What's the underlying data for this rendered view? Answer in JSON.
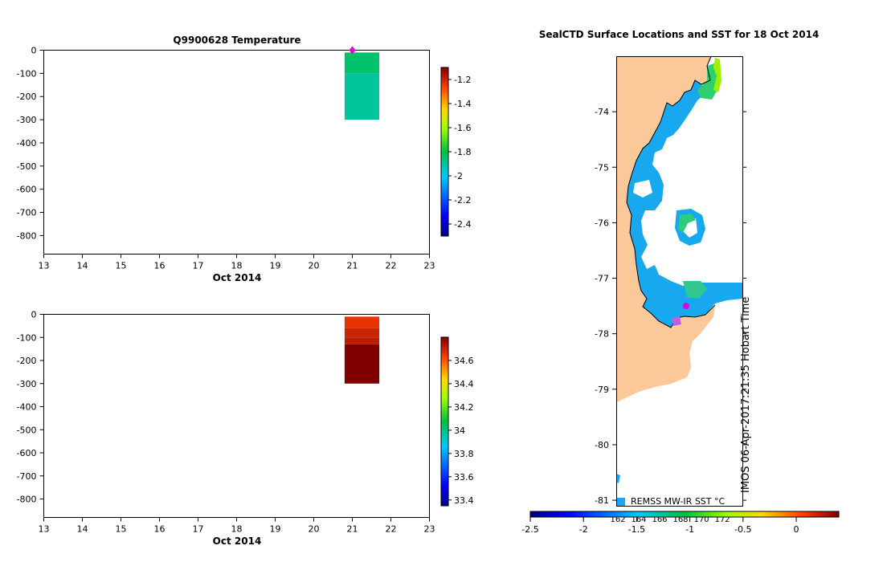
{
  "chart_data": [
    {
      "type": "heatmap",
      "title": "Q9900628  Temperature",
      "xlabel": "Oct 2014",
      "ylabel": "",
      "x_ticks": [
        "13",
        "14",
        "15",
        "16",
        "17",
        "18",
        "19",
        "20",
        "21",
        "22",
        "23"
      ],
      "xlim": [
        13,
        23
      ],
      "y_ticks": [
        "0",
        "-100",
        "-200",
        "-300",
        "-400",
        "-500",
        "-600",
        "-700",
        "-800"
      ],
      "ylim": [
        -880,
        0
      ],
      "profile": {
        "x_start": 20.8,
        "x_end": 21.7,
        "depth_bins": [
          {
            "top": -10,
            "bottom": -100,
            "value": -1.85
          },
          {
            "top": -100,
            "bottom": -300,
            "value": -1.9
          }
        ]
      },
      "marker": {
        "x": 21.0,
        "y": 0,
        "color": "#e000e0"
      },
      "colorbar": {
        "ticks": [
          "-1.2",
          "-1.4",
          "-1.6",
          "-1.8",
          "-2",
          "-2.2",
          "-2.4"
        ],
        "range": [
          -2.5,
          -1.1
        ]
      }
    },
    {
      "type": "heatmap",
      "title": "",
      "xlabel": "Oct 2014",
      "x_ticks": [
        "13",
        "14",
        "15",
        "16",
        "17",
        "18",
        "19",
        "20",
        "21",
        "22",
        "23"
      ],
      "xlim": [
        13,
        23
      ],
      "y_ticks": [
        "0",
        "-100",
        "-200",
        "-300",
        "-400",
        "-500",
        "-600",
        "-700",
        "-800"
      ],
      "ylim": [
        -880,
        0
      ],
      "profile": {
        "x_start": 20.8,
        "x_end": 21.7,
        "depth_bins": [
          {
            "top": -10,
            "bottom": -60,
            "value": 34.66
          },
          {
            "top": -60,
            "bottom": -100,
            "value": 34.7
          },
          {
            "top": -100,
            "bottom": -130,
            "value": 34.72
          },
          {
            "top": -130,
            "bottom": -300,
            "value": 34.8
          }
        ]
      },
      "colorbar": {
        "ticks": [
          "34.6",
          "34.4",
          "34.2",
          "34",
          "33.8",
          "33.6",
          "33.4"
        ],
        "range": [
          33.35,
          34.8
        ]
      }
    },
    {
      "type": "map",
      "title": "SealCTD Surface Locations and SST for 18 Oct 2014",
      "y_ticks": [
        "-74",
        "-75",
        "-76",
        "-77",
        "-78",
        "-79",
        "-80",
        "-81"
      ],
      "ylim": [
        -81.1,
        -73.0
      ],
      "colorbar_label": "REMSS MW-IR SST °C",
      "credit": "IMOS 06-Apr-2017:21:35 Hobart Time",
      "longitude_ticks": [
        "162",
        "164",
        "166",
        "168",
        "170",
        "172"
      ],
      "colorbar": {
        "ticks": [
          "-2.5",
          "-2",
          "-1.5",
          "-1",
          "-0.5",
          "0"
        ],
        "range": [
          -2.5,
          0.4
        ]
      },
      "locations": [
        {
          "lat": -77.5,
          "color": "#e000e0"
        }
      ]
    }
  ]
}
